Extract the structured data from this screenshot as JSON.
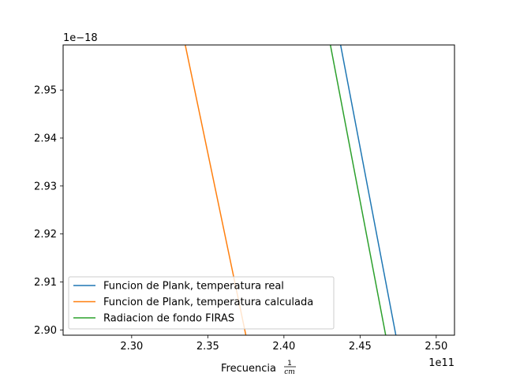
{
  "chart_data": {
    "type": "line",
    "xlabel": "Frecuencia",
    "xlabel_fraction": {
      "numerator": "1",
      "denominator": "cm"
    },
    "x_offset_text": "1e11",
    "y_offset_text": "1e−18",
    "xlim": [
      2.255,
      2.512
    ],
    "ylim": [
      2.8989,
      2.9594
    ],
    "x_ticks": [
      2.3,
      2.35,
      2.4,
      2.45,
      2.5
    ],
    "x_tick_labels": [
      "2.30",
      "2.35",
      "2.40",
      "2.45",
      "2.50"
    ],
    "y_ticks": [
      2.9,
      2.91,
      2.92,
      2.93,
      2.94,
      2.95
    ],
    "y_tick_labels": [
      "2.90",
      "2.91",
      "2.92",
      "2.93",
      "2.94",
      "2.95"
    ],
    "legend_position": "lower-left",
    "series": [
      {
        "name": "Funcion de Plank, temperatura real",
        "color": "#1f77b4",
        "x": [
          2.4372,
          2.4735
        ],
        "y": [
          2.9594,
          2.8989
        ]
      },
      {
        "name": "Funcion de Plank, temperatura calculada",
        "color": "#ff7f0e",
        "x": [
          2.3352,
          2.375
        ],
        "y": [
          2.9594,
          2.8989
        ]
      },
      {
        "name": "Radiacion de fondo FIRAS",
        "color": "#2ca02c",
        "x": [
          2.4305,
          2.4668
        ],
        "y": [
          2.9594,
          2.8989
        ]
      }
    ]
  }
}
